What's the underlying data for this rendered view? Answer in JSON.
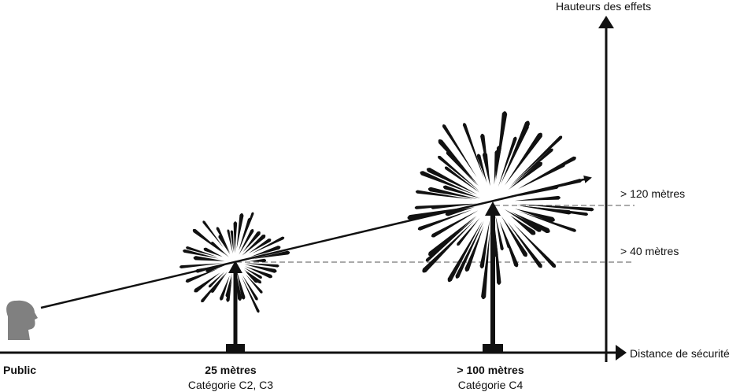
{
  "axes": {
    "y_label": "Hauteurs des effets",
    "x_label": "Distance de sécurité"
  },
  "heights": [
    {
      "label": "> 120 mètres"
    },
    {
      "label": "> 40 mètres"
    }
  ],
  "viewer": {
    "label": "Public",
    "icon": "person-head-icon"
  },
  "fireworks": [
    {
      "distance": "25 mètres",
      "category": "Catégorie C2, C3",
      "icon": "firework-burst-icon"
    },
    {
      "distance": "> 100 mètres",
      "category": "Catégorie C4",
      "icon": "firework-burst-icon"
    }
  ],
  "colors": {
    "line": "#111111",
    "guide": "#777777",
    "head": "#808080"
  }
}
